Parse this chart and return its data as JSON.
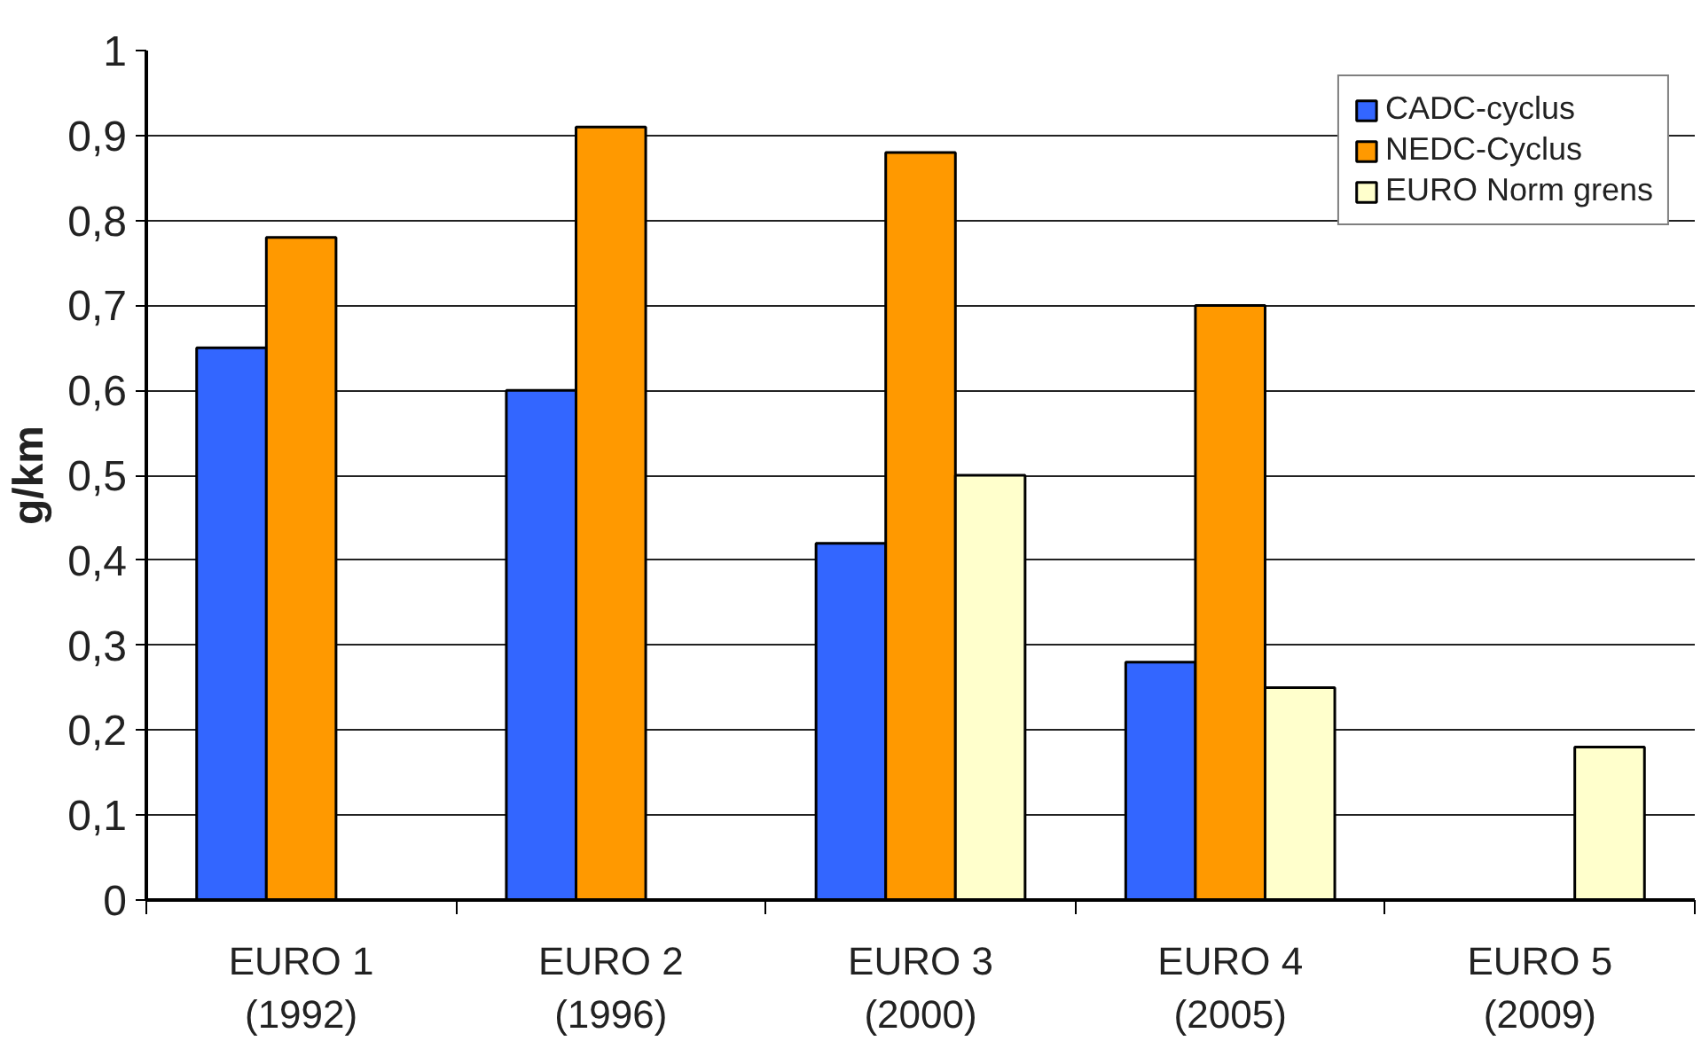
{
  "chart_data": {
    "type": "bar",
    "ylabel": "g/km",
    "categories": [
      "EURO 1\n(1992)",
      "EURO 2\n(1996)",
      "EURO 3\n(2000)",
      "EURO 4\n(2005)",
      "EURO 5\n(2009)"
    ],
    "series": [
      {
        "name": "CADC-cyclus",
        "color": "#3366ff",
        "values": [
          0.65,
          0.6,
          0.42,
          0.28,
          null
        ]
      },
      {
        "name": "NEDC-Cyclus",
        "color": "#ff9900",
        "values": [
          0.78,
          0.91,
          0.88,
          0.7,
          null
        ]
      },
      {
        "name": "EURO Norm grens",
        "color": "#ffffcc",
        "values": [
          null,
          null,
          0.5,
          0.25,
          0.18
        ]
      }
    ],
    "ylim": [
      0,
      1
    ],
    "yticks": [
      0,
      {
        "value": 0.1,
        "label": "0,1"
      },
      {
        "value": 0.2,
        "label": "0,2"
      },
      {
        "value": 0.3,
        "label": "0,3"
      },
      {
        "value": 0.4,
        "label": "0,4"
      },
      {
        "value": 0.5,
        "label": "0,5"
      },
      {
        "value": 0.6,
        "label": "0,6"
      },
      {
        "value": 0.7,
        "label": "0,7"
      },
      {
        "value": 0.8,
        "label": "0,8"
      },
      {
        "value": 0.9,
        "label": "0,9"
      },
      1
    ],
    "grid": "y",
    "legend": "top right"
  }
}
